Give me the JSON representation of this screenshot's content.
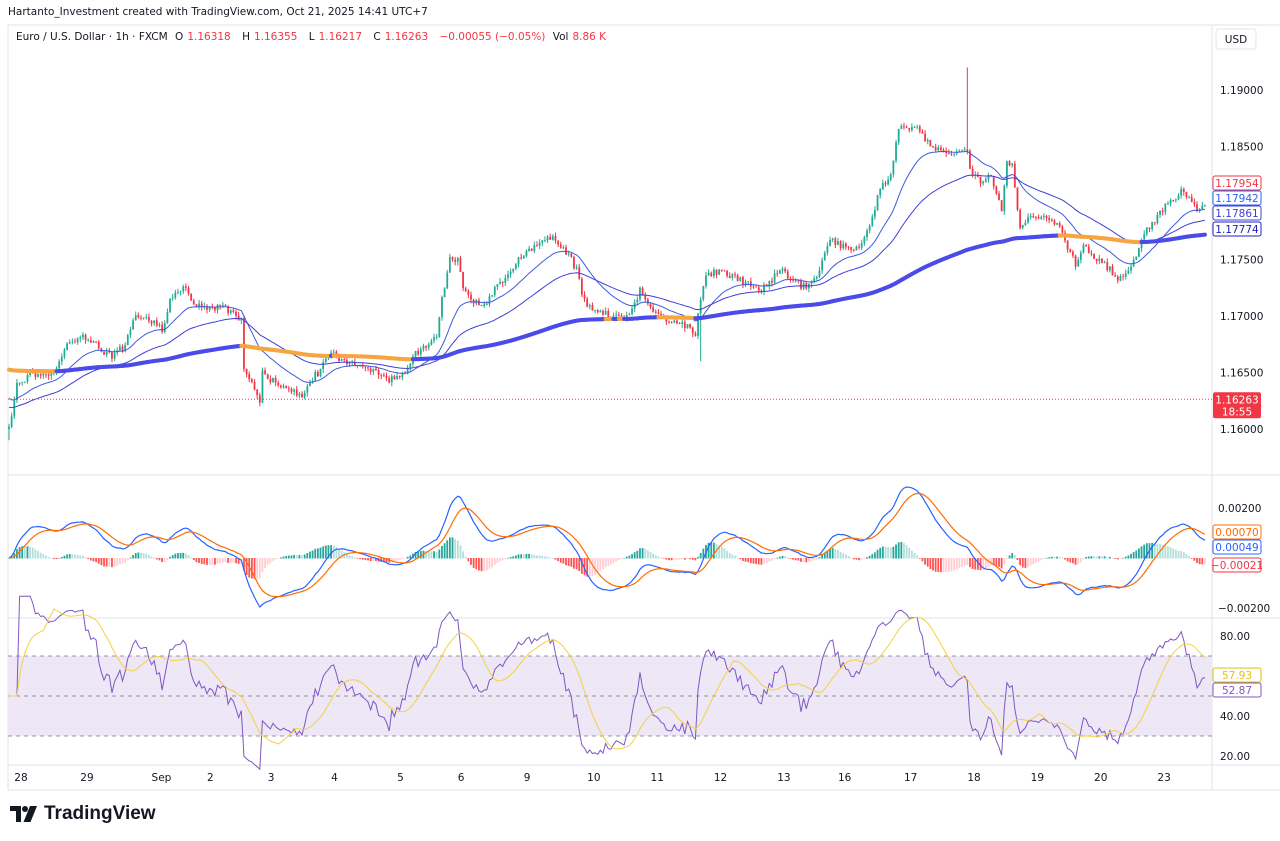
{
  "attribution": "Hartanto_Investment created with TradingView.com, Oct 21, 2025 14:41 UTC+7",
  "legend": {
    "symbol": "Euro / U.S. Dollar · 1h · FXCM",
    "open_label": "O",
    "open": "1.16318",
    "high_label": "H",
    "high": "1.16355",
    "low_label": "L",
    "low": "1.16217",
    "close_label": "C",
    "close": "1.16263",
    "change": "−0.00055 (−0.05%)",
    "volume_label": "Vol",
    "volume": "8.86 K"
  },
  "currency": "USD",
  "logo_text": "TradingView",
  "colors": {
    "up": "#22ab94",
    "down": "#f23645",
    "ma_fast": "#3b5bdb",
    "ma_slow": "#3f3fd6",
    "ma_long": "#4b4bea",
    "ma_long_flat": "#f7a541",
    "macd": "#2962ff",
    "signal": "#ff6d00",
    "rsi": "#7e57c2",
    "rsi_ma": "#f5d142",
    "rsi_band": "#ede7f6"
  },
  "chart_data": [
    {
      "type": "candlestick",
      "title": "",
      "interval": "1h",
      "close_path": [
        [
          0,
          1.1599
        ],
        [
          3,
          1.1639
        ],
        [
          8,
          1.1648
        ],
        [
          12,
          1.1645
        ],
        [
          18,
          1.1652
        ],
        [
          22,
          1.1674
        ],
        [
          27,
          1.1683
        ],
        [
          31,
          1.1679
        ],
        [
          35,
          1.167
        ],
        [
          39,
          1.1665
        ],
        [
          44,
          1.1674
        ],
        [
          48,
          1.1701
        ],
        [
          54,
          1.1696
        ],
        [
          58,
          1.1688
        ],
        [
          61,
          1.1714
        ],
        [
          66,
          1.1727
        ],
        [
          69,
          1.1712
        ],
        [
          73,
          1.171
        ],
        [
          77,
          1.1705
        ],
        [
          80,
          1.171
        ],
        [
          85,
          1.1701
        ],
        [
          88,
          1.1698
        ],
        [
          89,
          1.1652
        ],
        [
          92,
          1.1639
        ],
        [
          95,
          1.1621
        ],
        [
          96,
          1.1652
        ],
        [
          99,
          1.1643
        ],
        [
          104,
          1.1639
        ],
        [
          108,
          1.1633
        ],
        [
          111,
          1.1626
        ],
        [
          114,
          1.1643
        ],
        [
          118,
          1.1652
        ],
        [
          122,
          1.167
        ],
        [
          126,
          1.1661
        ],
        [
          130,
          1.1659
        ],
        [
          133,
          1.1654
        ],
        [
          139,
          1.165
        ],
        [
          143,
          1.1643
        ],
        [
          147,
          1.1645
        ],
        [
          150,
          1.1652
        ],
        [
          154,
          1.1668
        ],
        [
          158,
          1.1672
        ],
        [
          162,
          1.1683
        ],
        [
          164,
          1.1714
        ],
        [
          167,
          1.1751
        ],
        [
          170,
          1.175
        ],
        [
          172,
          1.1723
        ],
        [
          175,
          1.1714
        ],
        [
          180,
          1.171
        ],
        [
          184,
          1.1723
        ],
        [
          188,
          1.1732
        ],
        [
          192,
          1.1748
        ],
        [
          196,
          1.1758
        ],
        [
          200,
          1.1763
        ],
        [
          203,
          1.1767
        ],
        [
          206,
          1.1772
        ],
        [
          209,
          1.1763
        ],
        [
          212,
          1.1754
        ],
        [
          215,
          1.1741
        ],
        [
          217,
          1.1719
        ],
        [
          220,
          1.1707
        ],
        [
          224,
          1.1705
        ],
        [
          228,
          1.1701
        ],
        [
          232,
          1.1698
        ],
        [
          236,
          1.1705
        ],
        [
          239,
          1.1723
        ],
        [
          242,
          1.171
        ],
        [
          245,
          1.1701
        ],
        [
          249,
          1.1696
        ],
        [
          253,
          1.1696
        ],
        [
          256,
          1.1692
        ],
        [
          260,
          1.1685
        ],
        [
          262,
          1.1714
        ],
        [
          264,
          1.1736
        ],
        [
          268,
          1.1739
        ],
        [
          273,
          1.1736
        ],
        [
          277,
          1.1732
        ],
        [
          281,
          1.1727
        ],
        [
          285,
          1.1723
        ],
        [
          289,
          1.1732
        ],
        [
          292,
          1.1741
        ],
        [
          296,
          1.1732
        ],
        [
          300,
          1.1727
        ],
        [
          304,
          1.1727
        ],
        [
          308,
          1.1748
        ],
        [
          311,
          1.1767
        ],
        [
          315,
          1.1763
        ],
        [
          319,
          1.176
        ],
        [
          323,
          1.1763
        ],
        [
          327,
          1.1789
        ],
        [
          330,
          1.1812
        ],
        [
          334,
          1.1825
        ],
        [
          337,
          1.1865
        ],
        [
          340,
          1.1866
        ],
        [
          344,
          1.1865
        ],
        [
          347,
          1.1856
        ],
        [
          351,
          1.1849
        ],
        [
          355,
          1.1842
        ],
        [
          359,
          1.1847
        ],
        [
          363,
          1.1847
        ],
        [
          364,
          1.1829
        ],
        [
          368,
          1.182
        ],
        [
          372,
          1.1825
        ],
        [
          376,
          1.1794
        ],
        [
          378,
          1.1834
        ],
        [
          380,
          1.1834
        ],
        [
          383,
          1.1776
        ],
        [
          385,
          1.1785
        ],
        [
          389,
          1.1789
        ],
        [
          393,
          1.1787
        ],
        [
          397,
          1.1781
        ],
        [
          400,
          1.1767
        ],
        [
          404,
          1.1745
        ],
        [
          407,
          1.1763
        ],
        [
          410,
          1.1754
        ],
        [
          414,
          1.1748
        ],
        [
          417,
          1.1741
        ],
        [
          420,
          1.1732
        ],
        [
          423,
          1.1736
        ],
        [
          427,
          1.1754
        ],
        [
          430,
          1.1772
        ],
        [
          434,
          1.1785
        ],
        [
          438,
          1.1798
        ],
        [
          442,
          1.1803
        ],
        [
          444,
          1.1812
        ],
        [
          447,
          1.1803
        ],
        [
          450,
          1.1794
        ],
        [
          453,
          1.1796
        ]
      ],
      "spikes": [
        [
          363,
          1.192
        ],
        [
          262,
          1.166
        ],
        [
          0,
          1.159
        ]
      ],
      "ylim": [
        1.1555,
        1.1955
      ],
      "y_ticks": [
        "1.19000",
        "1.18500",
        "1.17500",
        "1.17000",
        "1.16500",
        "1.16000"
      ],
      "x_ticks": [
        {
          "bar": 2,
          "label": "28"
        },
        {
          "bar": 27,
          "label": "29"
        },
        {
          "bar": 54,
          "label": "Sep"
        },
        {
          "bar": 75,
          "label": "2"
        },
        {
          "bar": 98,
          "label": "3"
        },
        {
          "bar": 122,
          "label": "4"
        },
        {
          "bar": 147,
          "label": "5"
        },
        {
          "bar": 170,
          "label": "6"
        },
        {
          "bar": 195,
          "label": "9"
        },
        {
          "bar": 219,
          "label": "10"
        },
        {
          "bar": 243,
          "label": "11"
        },
        {
          "bar": 267,
          "label": "12"
        },
        {
          "bar": 291,
          "label": "13"
        },
        {
          "bar": 314,
          "label": "16"
        },
        {
          "bar": 339,
          "label": "17"
        },
        {
          "bar": 363,
          "label": "18"
        },
        {
          "bar": 387,
          "label": "19"
        },
        {
          "bar": 411,
          "label": "20"
        },
        {
          "bar": 435,
          "label": "23"
        }
      ],
      "price_tags": [
        {
          "value": "1.17954",
          "price": 1.17954,
          "color": "#f23645",
          "filled": false
        },
        {
          "value": "1.17942",
          "price": 1.17942,
          "color": "#2962ff",
          "filled": false
        },
        {
          "value": "1.17861",
          "price": 1.17861,
          "color": "#3f3fd6",
          "filled": false
        },
        {
          "value": "1.17774",
          "price": 1.17774,
          "color": "#2020c0",
          "filled": false
        }
      ],
      "last_price": {
        "value": "1.16263",
        "price": 1.16263,
        "countdown": "18:55",
        "color": "#f23645"
      },
      "grid": false
    },
    {
      "type": "line",
      "title": "",
      "y_ticks": [
        {
          "value": 0.002,
          "label": "0.00200"
        },
        {
          "value": -0.002,
          "label": "−0.00200"
        }
      ],
      "ylim": [
        -0.00285,
        0.0023
      ],
      "tags": [
        {
          "value": "0.00070",
          "color": "#ff6d00"
        },
        {
          "value": "0.00049",
          "color": "#2962ff"
        },
        {
          "value": "−0.00021",
          "color": "#f23645"
        }
      ]
    },
    {
      "type": "line",
      "title": "",
      "y_ticks": [
        {
          "value": 80,
          "label": "80.00"
        },
        {
          "value": 40,
          "label": "40.00"
        },
        {
          "value": 20,
          "label": "20.00"
        }
      ],
      "ylim": [
        10,
        88
      ],
      "bands": [
        70,
        50,
        30
      ],
      "tags": [
        {
          "value": "57.93",
          "color": "#e6c200"
        },
        {
          "value": "52.87",
          "color": "#7e57c2"
        }
      ]
    }
  ]
}
